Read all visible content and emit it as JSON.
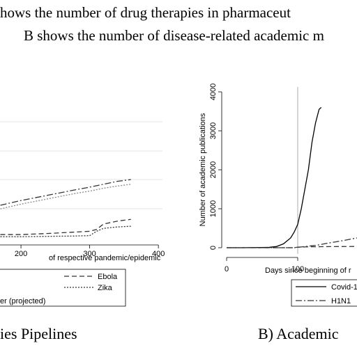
{
  "text": {
    "line1": "hows the number of drug therapies in pharmaceut",
    "line2": "B shows the number of disease-related academic m"
  },
  "chart_data": [
    {
      "type": "line",
      "x_label": "of respective pandemic/epidemic",
      "caption": "ies Pipelines",
      "xlim": [
        0,
        410
      ],
      "ylim": [
        0,
        40
      ],
      "xticks": [
        200,
        300,
        400
      ],
      "x": [
        170,
        200,
        240,
        280,
        300,
        310,
        320,
        340,
        360
      ],
      "series": [
        {
          "color": "#333333",
          "dash": "dashdot",
          "values": [
            10.2,
            11.5,
            13,
            14.5,
            15.2,
            15.6,
            16,
            16.8,
            17.3
          ]
        },
        {
          "name": "er (projected)",
          "color": "#888888",
          "dash": "dotted",
          "values": [
            9.2,
            10.5,
            12,
            13.5,
            14.1,
            14.5,
            14.9,
            15.5,
            16
          ]
        },
        {
          "name": "Ebola",
          "color": "#333333",
          "dash": "dashed",
          "values": [
            2.1,
            2.1,
            2.4,
            2.8,
            3,
            3.5,
            5,
            5.8,
            6.3
          ]
        },
        {
          "name": "Zika",
          "color": "#333333",
          "dash": "dotted",
          "values": [
            1.5,
            1.5,
            1.6,
            1.7,
            1.8,
            3,
            3.8,
            4.2,
            4.4
          ]
        }
      ]
    },
    {
      "type": "line",
      "x_label": "Days since beginning of r",
      "y_label": "Number of academic publications",
      "caption": "B) Academic",
      "xlim": [
        0,
        200
      ],
      "ylim": [
        0,
        4000
      ],
      "xticks": [
        0,
        100
      ],
      "yticks": [
        0,
        1000,
        2000,
        3000,
        4000
      ],
      "vline": 100,
      "x": [
        0,
        20,
        40,
        60,
        70,
        80,
        90,
        95,
        100,
        105,
        110,
        115,
        120,
        125,
        130,
        133,
        140,
        160,
        180,
        190
      ],
      "series": [
        {
          "name": "Covid-1",
          "color": "#000000",
          "dash": "solid",
          "values": [
            0,
            0,
            5,
            10,
            30,
            100,
            250,
            400,
            600,
            1000,
            1500,
            2000,
            2700,
            3200,
            3550,
            3600,
            null,
            null,
            null,
            null
          ]
        },
        {
          "name": "H1N1",
          "color": "#333333",
          "dash": "dashdot",
          "values": [
            0,
            0,
            0,
            0,
            0,
            0,
            0,
            0,
            10,
            20,
            30,
            40,
            50,
            60,
            75,
            85,
            110,
            170,
            240,
            270
          ]
        },
        {
          "color": "#333333",
          "dash": "dashed",
          "values": [
            0,
            0,
            0,
            0,
            0,
            0,
            0,
            0,
            15,
            18,
            20,
            22,
            24,
            25,
            26,
            27,
            28,
            30,
            32,
            33
          ]
        }
      ]
    }
  ]
}
